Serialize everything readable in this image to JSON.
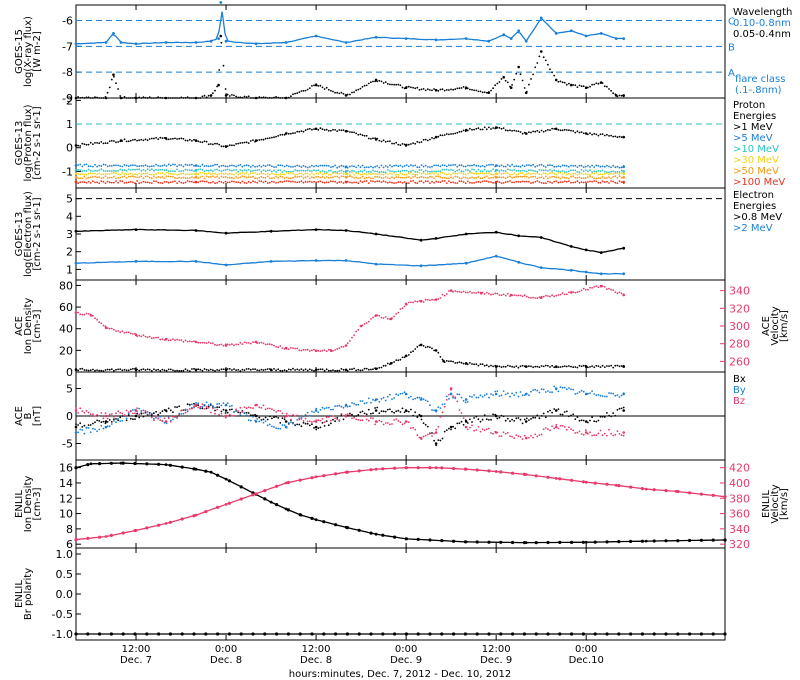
{
  "chart_data": {
    "type": "line",
    "xlabel": "hours:minutes, Dec.  7, 2012 - Dec. 10, 2012",
    "x_unit": "hours since 2012-12-07 00:00 UT",
    "xlim": [
      4,
      90.5
    ],
    "x_ticks": [
      {
        "x": 12,
        "time": "12:00",
        "date": "Dec. 7"
      },
      {
        "x": 24,
        "time": "0:00",
        "date": "Dec. 8"
      },
      {
        "x": 36,
        "time": "12:00",
        "date": "Dec. 8"
      },
      {
        "x": 48,
        "time": "0:00",
        "date": "Dec. 9"
      },
      {
        "x": 60,
        "time": "12:00",
        "date": "Dec. 9"
      },
      {
        "x": 72,
        "time": "0:00",
        "date": "Dec.10"
      }
    ],
    "panels": [
      {
        "id": "goes15-xray",
        "ylabel": [
          "GOES-15",
          "log(X-ray flux)",
          "[W m-2]"
        ],
        "ylim": [
          -9,
          -5.4
        ],
        "yticks": [
          -9,
          -8,
          -7,
          -6
        ],
        "legend": [
          {
            "label": "Wavelength",
            "color": "#000000"
          },
          {
            "label": "0.10-0.8nm",
            "color": "#1a7fd6"
          },
          {
            "label": "0.05-0.4nm",
            "color": "#000000"
          }
        ],
        "flare_classes": [
          {
            "label": "C",
            "y": -6
          },
          {
            "label": "B",
            "y": -7
          },
          {
            "label": "A",
            "y": -8
          }
        ],
        "flare_note": [
          "flare class",
          "(.1-.8nm)"
        ],
        "series": [
          {
            "color": "#1a7fd6",
            "style": "line",
            "x": [
              4,
              8,
              9,
              10,
              12,
              16,
              20,
              22,
              23,
              23.3,
              24,
              28,
              32,
              36,
              40,
              44,
              48,
              52,
              56,
              59,
              61,
              62,
              63,
              64,
              66,
              68,
              70,
              72,
              74,
              76,
              77
            ],
            "y": [
              -6.9,
              -6.85,
              -6.5,
              -6.85,
              -6.9,
              -6.85,
              -6.85,
              -6.8,
              -6.7,
              -5.3,
              -6.8,
              -6.9,
              -6.85,
              -6.6,
              -6.85,
              -6.65,
              -6.7,
              -6.75,
              -6.7,
              -6.8,
              -6.55,
              -6.7,
              -6.4,
              -6.8,
              -5.9,
              -6.5,
              -6.4,
              -6.6,
              -6.5,
              -6.7,
              -6.7
            ]
          },
          {
            "color": "#000000",
            "style": "dots",
            "x": [
              4,
              8,
              9,
              10,
              12,
              16,
              20,
              22,
              23,
              23.3,
              24,
              28,
              32,
              36,
              40,
              44,
              48,
              52,
              56,
              59,
              61,
              62,
              63,
              64,
              66,
              68,
              70,
              72,
              74,
              76,
              77
            ],
            "y": [
              -9,
              -9,
              -8.1,
              -9,
              -9,
              -9,
              -9,
              -8.9,
              -8.5,
              -6.6,
              -8.9,
              -9,
              -9,
              -8.5,
              -8.9,
              -8.3,
              -8.6,
              -8.7,
              -8.6,
              -8.8,
              -8.2,
              -8.6,
              -7.8,
              -8.8,
              -7.2,
              -8.3,
              -8.5,
              -8.6,
              -8.4,
              -8.9,
              -8.9
            ]
          }
        ]
      },
      {
        "id": "goes13-proton",
        "ylabel": [
          "GOES-13",
          "log(Proton flux)",
          "[cm-2 s-1 sr-1]"
        ],
        "ylim": [
          -1.7,
          2.1
        ],
        "yticks": [
          -1,
          0,
          1,
          2
        ],
        "threshold": 1,
        "legend": [
          {
            "label": "Proton",
            "color": "#000000"
          },
          {
            "label": "Energies",
            "color": "#000000"
          },
          {
            "label": ">1 MeV",
            "color": "#000000"
          },
          {
            "label": ">5 MeV",
            "color": "#1a7fd6"
          },
          {
            "label": ">10 MeV",
            "color": "#2ec4c4"
          },
          {
            "label": ">30 MeV",
            "color": "#f5d21a"
          },
          {
            "label": ">50 MeV",
            "color": "#f59a1a"
          },
          {
            "label": ">100 MeV",
            "color": "#e8331e"
          }
        ],
        "series": [
          {
            "color": "#000000",
            "style": "dots",
            "x": [
              4,
              10,
              16,
              20,
              24,
              28,
              32,
              36,
              40,
              44,
              48,
              52,
              56,
              60,
              64,
              68,
              72,
              77
            ],
            "y": [
              0.1,
              0.3,
              0.4,
              0.3,
              0.05,
              0.3,
              0.6,
              0.8,
              0.7,
              0.35,
              0.1,
              0.45,
              0.75,
              0.85,
              0.6,
              0.8,
              0.6,
              0.45
            ]
          },
          {
            "color": "#1a7fd6",
            "style": "dots",
            "x": [
              4,
              20,
              40,
              60,
              77
            ],
            "y": [
              -0.75,
              -0.75,
              -0.8,
              -0.75,
              -0.8
            ]
          },
          {
            "color": "#2ec4c4",
            "style": "dots",
            "x": [
              4,
              20,
              40,
              60,
              77
            ],
            "y": [
              -0.95,
              -0.95,
              -1.0,
              -0.95,
              -1.0
            ]
          },
          {
            "color": "#f5d21a",
            "style": "dots",
            "x": [
              4,
              20,
              40,
              60,
              77
            ],
            "y": [
              -1.1,
              -1.1,
              -1.1,
              -1.1,
              -1.1
            ]
          },
          {
            "color": "#f59a1a",
            "style": "dots",
            "x": [
              4,
              20,
              40,
              60,
              77
            ],
            "y": [
              -1.25,
              -1.25,
              -1.25,
              -1.25,
              -1.25
            ]
          },
          {
            "color": "#e8331e",
            "style": "dots",
            "x": [
              4,
              20,
              40,
              60,
              77
            ],
            "y": [
              -1.45,
              -1.45,
              -1.45,
              -1.45,
              -1.45
            ]
          }
        ]
      },
      {
        "id": "goes13-electron",
        "ylabel": [
          "GOES-13",
          "log(Electron flux)",
          "[cm-2 s-1 sr-1]"
        ],
        "ylim": [
          0.4,
          5.6
        ],
        "yticks": [
          1,
          2,
          3,
          4,
          5
        ],
        "threshold": 5,
        "legend": [
          {
            "label": "Electron",
            "color": "#000000"
          },
          {
            "label": "Energies",
            "color": "#000000"
          },
          {
            "label": ">0.8 MeV",
            "color": "#000000"
          },
          {
            "label": ">2 MeV",
            "color": "#1a7fd6"
          }
        ],
        "series": [
          {
            "color": "#000000",
            "style": "line",
            "x": [
              4,
              12,
              20,
              24,
              30,
              36,
              40,
              44,
              50,
              52,
              56,
              60,
              63,
              66,
              70,
              72,
              74,
              77
            ],
            "y": [
              3.15,
              3.25,
              3.2,
              3.05,
              3.15,
              3.25,
              3.2,
              3.0,
              2.65,
              2.75,
              3.0,
              3.1,
              2.9,
              2.8,
              2.3,
              2.1,
              1.95,
              2.2
            ]
          },
          {
            "color": "#1a7fd6",
            "style": "line",
            "x": [
              4,
              12,
              20,
              24,
              30,
              36,
              40,
              44,
              50,
              56,
              60,
              63,
              66,
              70,
              72,
              74,
              77
            ],
            "y": [
              1.35,
              1.45,
              1.45,
              1.25,
              1.45,
              1.5,
              1.5,
              1.3,
              1.2,
              1.35,
              1.75,
              1.4,
              1.1,
              0.95,
              0.85,
              0.75,
              0.75
            ]
          }
        ]
      },
      {
        "id": "ace-density-velocity",
        "ylabel": [
          "ACE",
          "Ion Density",
          "[cm-3]"
        ],
        "ylim": [
          0,
          85
        ],
        "yticks": [
          0,
          20,
          40,
          60,
          80
        ],
        "y2label": [
          "ACE",
          "Velocity",
          "[km/s]"
        ],
        "y2lim": [
          248,
          352
        ],
        "y2ticks": [
          260,
          280,
          300,
          320,
          340
        ],
        "series": [
          {
            "color": "#000000",
            "style": "dots",
            "axis": "left",
            "x": [
              4,
              12,
              20,
              24,
              30,
              36,
              40,
              44,
              46,
              48,
              50,
              52,
              53,
              56,
              60,
              64,
              68,
              72,
              77
            ],
            "y": [
              2,
              2,
              2,
              2,
              2,
              2,
              2,
              3,
              8,
              15,
              25,
              20,
              10,
              8,
              5,
              5,
              5,
              5,
              5
            ]
          },
          {
            "color": "#e83a6a",
            "style": "dots",
            "axis": "right",
            "x": [
              4,
              6,
              8,
              12,
              16,
              20,
              24,
              28,
              32,
              36,
              38,
              40,
              42,
              44,
              46,
              48,
              50,
              52,
              54,
              58,
              62,
              66,
              70,
              74,
              77
            ],
            "y": [
              315,
              312,
              298,
              290,
              285,
              282,
              278,
              282,
              275,
              272,
              272,
              278,
              300,
              312,
              308,
              325,
              328,
              330,
              340,
              337,
              335,
              332,
              338,
              345,
              335
            ]
          }
        ]
      },
      {
        "id": "ace-b",
        "ylabel": [
          "ACE",
          "B",
          "[nT]"
        ],
        "ylim": [
          -8,
          8
        ],
        "yticks": [
          -5,
          0,
          5
        ],
        "zero_line": true,
        "legend": [
          {
            "label": "Bx",
            "color": "#000000"
          },
          {
            "label": "By",
            "color": "#1a7fd6"
          },
          {
            "label": "Bz",
            "color": "#e83a6a"
          }
        ],
        "series": [
          {
            "color": "#000000",
            "style": "dots",
            "x": [
              4,
              8,
              12,
              16,
              20,
              24,
              28,
              32,
              36,
              40,
              44,
              48,
              50,
              52,
              54,
              56,
              60,
              64,
              68,
              72,
              77
            ],
            "y": [
              -2,
              -1,
              0,
              1,
              2,
              1,
              0,
              -1,
              -2,
              0,
              1,
              1,
              0,
              -5,
              -2,
              -1,
              0,
              -1,
              1,
              -1,
              1
            ]
          },
          {
            "color": "#1a7fd6",
            "style": "dots",
            "x": [
              4,
              8,
              12,
              16,
              20,
              24,
              28,
              32,
              36,
              40,
              44,
              48,
              50,
              52,
              54,
              56,
              60,
              64,
              68,
              72,
              77
            ],
            "y": [
              -3,
              -2,
              1,
              -1,
              2,
              2,
              -1,
              -2,
              1,
              2,
              3,
              4,
              3,
              1,
              4,
              3,
              4,
              4,
              5,
              4,
              4
            ]
          },
          {
            "color": "#e83a6a",
            "style": "dots",
            "x": [
              4,
              8,
              12,
              16,
              20,
              24,
              28,
              32,
              36,
              40,
              44,
              48,
              50,
              52,
              54,
              56,
              60,
              64,
              68,
              72,
              77
            ],
            "y": [
              1,
              0,
              1,
              -1,
              2,
              0,
              2,
              0,
              -1,
              0,
              -1,
              -1,
              -4,
              -3,
              5,
              -2,
              -3,
              -4,
              -2,
              -3,
              -3
            ]
          }
        ]
      },
      {
        "id": "enlil-density-velocity",
        "ylabel": [
          "ENLIL",
          "Ion Density",
          "[cm-3]"
        ],
        "ylim": [
          5.5,
          17
        ],
        "yticks": [
          6,
          8,
          10,
          12,
          14,
          16
        ],
        "y2label": [
          "ENLIL",
          "Velocity",
          "[km/s]"
        ],
        "y2lim": [
          315,
          430
        ],
        "y2ticks": [
          320,
          340,
          360,
          380,
          400,
          420
        ],
        "series": [
          {
            "color": "#000000",
            "style": "line-dots",
            "axis": "left",
            "x": [
              4,
              6,
              10,
              16,
              20,
              22,
              24,
              26,
              28,
              30,
              32,
              34,
              36,
              40,
              44,
              48,
              56,
              64,
              72,
              80,
              90.5
            ],
            "y": [
              16,
              16.5,
              16.6,
              16.4,
              15.8,
              15.4,
              14.5,
              13.5,
              12.5,
              11.5,
              10.6,
              9.8,
              9.2,
              8.2,
              7.3,
              6.7,
              6.3,
              6.2,
              6.25,
              6.4,
              6.55
            ]
          },
          {
            "color": "#e83a6a",
            "style": "line-dots",
            "axis": "right",
            "x": [
              4,
              8,
              12,
              16,
              20,
              24,
              28,
              32,
              36,
              40,
              44,
              48,
              52,
              56,
              60,
              64,
              68,
              72,
              76,
              80,
              84,
              90.5
            ],
            "y": [
              326,
              330,
              338,
              347,
              358,
              372,
              386,
              400,
              408,
              414,
              418,
              420,
              420,
              418,
              415,
              411,
              406,
              401,
              397,
              392,
              389,
              382
            ]
          }
        ]
      },
      {
        "id": "enlil-polarity",
        "ylabel": [
          "ENLIL",
          "Br polarity"
        ],
        "ylim": [
          -1.15,
          1.15
        ],
        "yticks": [
          -1.0,
          -0.5,
          0.0,
          0.5,
          1.0
        ],
        "series": [
          {
            "color": "#000000",
            "style": "line-dots",
            "x": [
              4,
              90.5
            ],
            "y": [
              -1.0,
              -1.0
            ]
          }
        ]
      }
    ]
  }
}
